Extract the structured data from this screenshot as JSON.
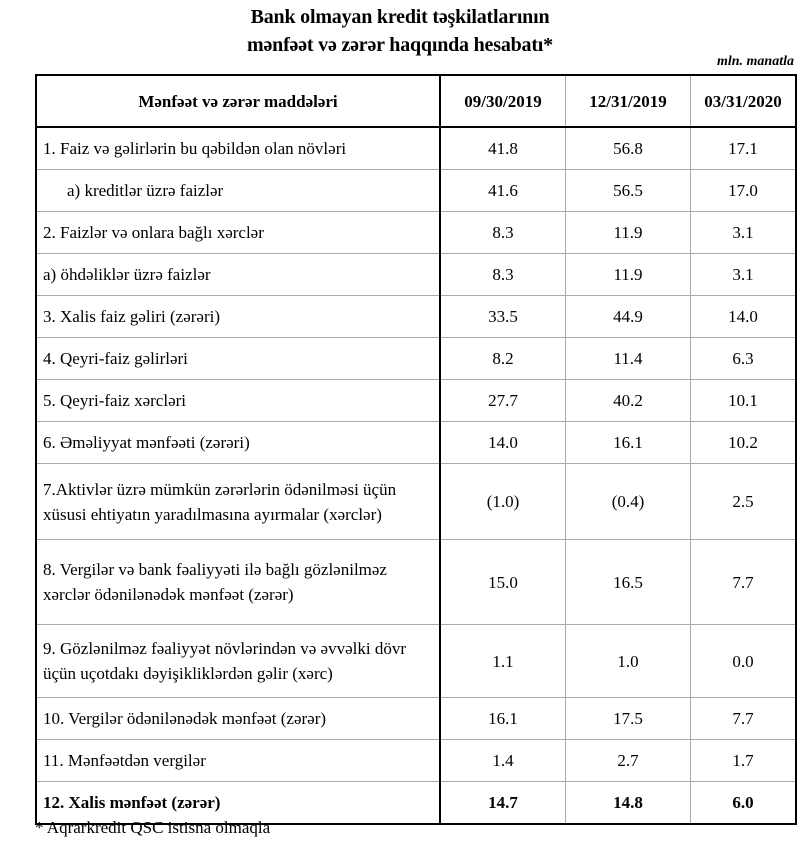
{
  "title_line1": "Bank olmayan kredit təşkilatlarının",
  "title_line2": "mənfəət və zərər haqqında hesabatı*",
  "unit": "mln. manatla",
  "headers": [
    "Mənfəət və zərər maddələri",
    "09/30/2019",
    "12/31/2019",
    "03/31/2020"
  ],
  "rows": [
    {
      "label": "1. Faiz və gəlirlərin bu qəbildən olan növləri",
      "values": [
        "41.8",
        "56.8",
        "17.1"
      ]
    },
    {
      "label": "a) kreditlər üzrə faizlər",
      "values": [
        "41.6",
        "56.5",
        "17.0"
      ]
    },
    {
      "label": "2. Faizlər və onlara bağlı xərclər",
      "values": [
        "8.3",
        "11.9",
        "3.1"
      ]
    },
    {
      "label": "a) öhdəliklər üzrə faizlər",
      "values": [
        "8.3",
        "11.9",
        "3.1"
      ]
    },
    {
      "label": "3. Xalis faiz gəliri (zərəri)",
      "values": [
        "33.5",
        "44.9",
        "14.0"
      ]
    },
    {
      "label": "4. Qeyri-faiz gəlirləri",
      "values": [
        "8.2",
        "11.4",
        "6.3"
      ]
    },
    {
      "label": "5. Qeyri-faiz xərcləri",
      "values": [
        "27.7",
        "40.2",
        "10.1"
      ]
    },
    {
      "label": "6. Əməliyyat mənfəəti (zərəri)",
      "values": [
        "14.0",
        "16.1",
        "10.2"
      ]
    },
    {
      "label": "7.Aktivlər üzrə mümkün zərərlərin ödənilməsi üçün xüsusi ehtiyatın yaradılmasına ayırmalar (xərclər)",
      "values": [
        "(1.0)",
        "(0.4)",
        "2.5"
      ]
    },
    {
      "label": "8. Vergilər və bank fəaliyyəti ilə bağlı gözlənilməz xərclər ödənilənədək mənfəət (zərər)",
      "values": [
        "15.0",
        "16.5",
        "7.7"
      ]
    },
    {
      "label": "9. Gözlənilməz fəaliyyət növlərindən və əvvəlki dövr üçün uçotdakı dəyişikliklərdən gəlir (xərc)",
      "values": [
        "1.1",
        "1.0",
        "0.0"
      ]
    },
    {
      "label": "10. Vergilər ödənilənədək mənfəət (zərər)",
      "values": [
        "16.1",
        "17.5",
        "7.7"
      ]
    },
    {
      "label": "11. Mənfəətdən vergilər",
      "values": [
        "1.4",
        "2.7",
        "1.7"
      ]
    },
    {
      "label": "12. Xalis mənfəət (zərər)",
      "values": [
        "14.7",
        "14.8",
        "6.0"
      ]
    }
  ],
  "footnote": "* Aqrarkredit QSC istisna olmaqla"
}
